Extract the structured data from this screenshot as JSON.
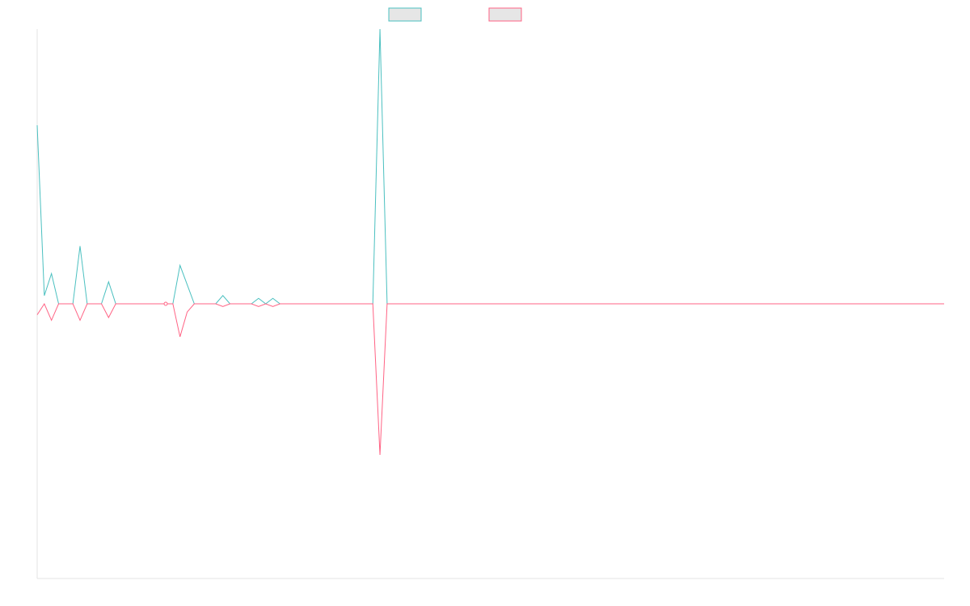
{
  "chart_data": {
    "type": "line",
    "title": "",
    "xlabel": "",
    "ylabel": "",
    "legend_position": "top-center",
    "grid": false,
    "x_count": 128,
    "ylim": [
      -100,
      100
    ],
    "series": [
      {
        "color": "#4bc0c0",
        "values": [
          65,
          3,
          11,
          0,
          0,
          0,
          21,
          0,
          0,
          0,
          8,
          0,
          0,
          0,
          0,
          0,
          0,
          0,
          0,
          0,
          14,
          7,
          0,
          0,
          0,
          0,
          3,
          0,
          0,
          0,
          0,
          2,
          0,
          2,
          0,
          0,
          0,
          0,
          0,
          0,
          0,
          0,
          0,
          0,
          0,
          0,
          0,
          0,
          100,
          0,
          0,
          0,
          0,
          0,
          0,
          0,
          0,
          0,
          0,
          0,
          0,
          0,
          0,
          0,
          0,
          0,
          0,
          0,
          0,
          0,
          0,
          0,
          0,
          0,
          0,
          0,
          0,
          0,
          0,
          0,
          0,
          0,
          0,
          0,
          0,
          0,
          0,
          0,
          0,
          0,
          0,
          0,
          0,
          0,
          0,
          0,
          0,
          0,
          0,
          0,
          0,
          0,
          0,
          0,
          0,
          0,
          0,
          0,
          0,
          0,
          0,
          0,
          0,
          0,
          0,
          0,
          0,
          0,
          0,
          0,
          0,
          0,
          0,
          0,
          0,
          0,
          0,
          0
        ]
      },
      {
        "color": "#ff6384",
        "values": [
          -4,
          0,
          -6,
          0,
          0,
          0,
          -6,
          0,
          0,
          0,
          -5,
          0,
          0,
          0,
          0,
          0,
          0,
          0,
          0,
          0,
          -12,
          -3,
          0,
          0,
          0,
          0,
          -1,
          0,
          0,
          0,
          0,
          -1,
          0,
          -1,
          0,
          0,
          0,
          0,
          0,
          0,
          0,
          0,
          0,
          0,
          0,
          0,
          0,
          0,
          -55,
          0,
          0,
          0,
          0,
          0,
          0,
          0,
          0,
          0,
          0,
          0,
          0,
          0,
          0,
          0,
          0,
          0,
          0,
          0,
          0,
          0,
          0,
          0,
          0,
          0,
          0,
          0,
          0,
          0,
          0,
          0,
          0,
          0,
          0,
          0,
          0,
          0,
          0,
          0,
          0,
          0,
          0,
          0,
          0,
          0,
          0,
          0,
          0,
          0,
          0,
          0,
          0,
          0,
          0,
          0,
          0,
          0,
          0,
          0,
          0,
          0,
          0,
          0,
          0,
          0,
          0,
          0,
          0,
          0,
          0,
          0,
          0,
          0,
          0,
          0,
          0,
          0,
          0,
          0
        ]
      }
    ]
  }
}
